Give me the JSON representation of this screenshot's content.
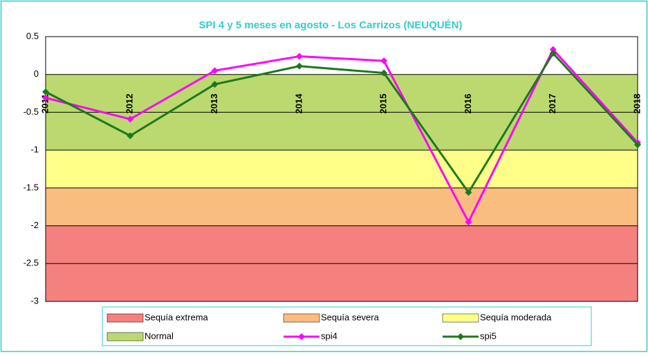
{
  "chart_data": {
    "type": "line",
    "title": "SPI 4 y 5 meses en agosto - Los Carrizos (NEUQUÉN)",
    "categories": [
      "2011",
      "2012",
      "2013",
      "2014",
      "2015",
      "2016",
      "2017",
      "2018"
    ],
    "bands": [
      {
        "name": "Sequía extrema",
        "color": "#f4817e",
        "range": [
          -3,
          -2
        ]
      },
      {
        "name": "Sequía severa",
        "color": "#f9bd7f",
        "range": [
          -2,
          -1.5
        ]
      },
      {
        "name": "Sequía moderada",
        "color": "#ffff8a",
        "range": [
          -1.5,
          -1
        ]
      },
      {
        "name": "Normal",
        "color": "#bcd96f",
        "range": [
          -1,
          0
        ]
      }
    ],
    "series": [
      {
        "name": "spi4",
        "color": "#ff00ff",
        "values": [
          -0.31,
          -0.59,
          0.05,
          0.24,
          0.18,
          -1.95,
          0.33,
          -0.9
        ]
      },
      {
        "name": "spi5",
        "color": "#1a7a1a",
        "values": [
          -0.23,
          -0.81,
          -0.13,
          0.11,
          0.02,
          -1.56,
          0.28,
          -0.93
        ]
      }
    ],
    "ylim": [
      -3,
      0.5
    ],
    "yticks": [
      0.5,
      0,
      -0.5,
      -1,
      -1.5,
      -2,
      -2.5,
      -3
    ],
    "grid": true
  }
}
